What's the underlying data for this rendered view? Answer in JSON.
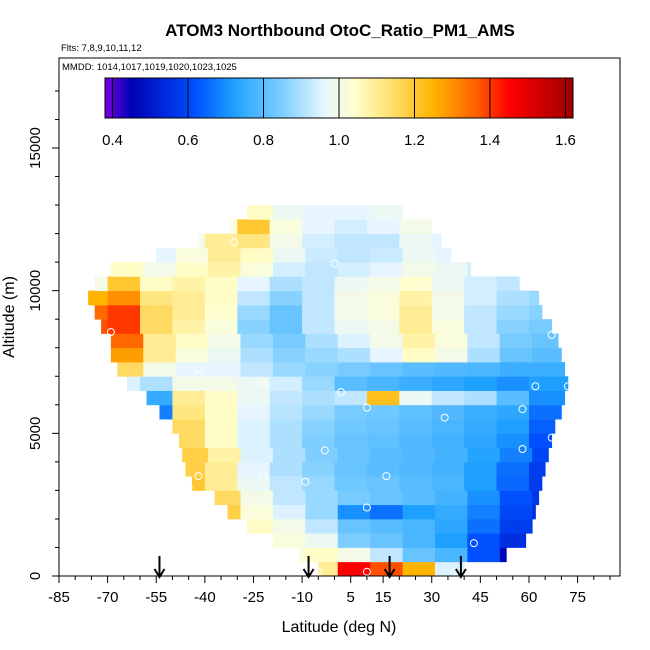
{
  "chart_data": {
    "type": "heatmap",
    "title": "ATOM3 Northbound OtoC_Ratio_PM1_AMS",
    "flights_note": "Flts: 7,8,9,10,11,12",
    "mmdd_note": "MMDD: 1014,1017,1019,1020,1023,1025",
    "xlabel": "Latitude (deg N)",
    "ylabel": "Altitude (m)",
    "xlim": [
      -85,
      85
    ],
    "ylim": [
      0,
      17500
    ],
    "x_ticks": [
      -85,
      -70,
      -55,
      -40,
      -25,
      -10,
      5,
      15,
      30,
      45,
      60,
      75
    ],
    "y_ticks": [
      0,
      5000,
      10000,
      15000
    ],
    "colorbar": {
      "range": [
        0.38,
        1.62
      ],
      "ticks": [
        0.4,
        0.6,
        0.8,
        1.0,
        1.2,
        1.4,
        1.6
      ],
      "tick_labels": [
        "0.4",
        "0.6",
        "0.8",
        "1.0",
        "1.2",
        "1.4",
        "1.6"
      ],
      "colors": [
        "#7a00e6",
        "#0000b4",
        "#0050ff",
        "#1ea0ff",
        "#7ecfff",
        "#e6f5ff",
        "#ffffd0",
        "#ffe680",
        "#ffb400",
        "#ff5a00",
        "#ff0000",
        "#a00000"
      ],
      "color_stops": [
        0.38,
        0.45,
        0.62,
        0.72,
        0.85,
        0.96,
        1.04,
        1.12,
        1.25,
        1.37,
        1.45,
        1.62
      ]
    },
    "grid": false,
    "arrows_at_latitude": [
      -54,
      -8,
      17,
      39
    ],
    "sample_points": [
      {
        "lat": -31,
        "alt": 11700
      },
      {
        "lat": -41,
        "alt": 11000
      },
      {
        "lat": 0,
        "alt": 10950
      },
      {
        "lat": -69,
        "alt": 8550
      },
      {
        "lat": 67,
        "alt": 8450
      },
      {
        "lat": -42,
        "alt": 7050
      },
      {
        "lat": -22,
        "alt": 6750
      },
      {
        "lat": 2,
        "alt": 6450
      },
      {
        "lat": 62,
        "alt": 6650
      },
      {
        "lat": 72,
        "alt": 6650
      },
      {
        "lat": 10,
        "alt": 5900
      },
      {
        "lat": 34,
        "alt": 5550
      },
      {
        "lat": 58,
        "alt": 5850
      },
      {
        "lat": 67,
        "alt": 4850
      },
      {
        "lat": -3,
        "alt": 4400
      },
      {
        "lat": 58,
        "alt": 4450
      },
      {
        "lat": -42,
        "alt": 3500
      },
      {
        "lat": -22,
        "alt": 3450
      },
      {
        "lat": -45,
        "alt": 3100
      },
      {
        "lat": -9,
        "alt": 3300
      },
      {
        "lat": 16,
        "alt": 3500
      },
      {
        "lat": 10,
        "alt": 2400
      },
      {
        "lat": 43,
        "alt": 1150
      },
      {
        "lat": 59,
        "alt": 650
      },
      {
        "lat": -5,
        "alt": 150
      },
      {
        "lat": 10,
        "alt": 150
      },
      {
        "lat": 37,
        "alt": 150
      },
      {
        "lat": 43,
        "alt": 150
      }
    ],
    "field": {
      "alt_rows": [
        0,
        500,
        1000,
        1500,
        2000,
        2500,
        3000,
        3500,
        4000,
        4500,
        5000,
        5500,
        6000,
        6500,
        7000,
        7500,
        8000,
        8500,
        9000,
        9500,
        10000,
        10500,
        11000,
        11500,
        12000,
        12500
      ],
      "lat_range_per_row": [
        [
          -5,
          40
        ],
        [
          -11,
          53
        ],
        [
          -19,
          59
        ],
        [
          -27,
          61
        ],
        [
          -33,
          62
        ],
        [
          -37,
          63
        ],
        [
          -44,
          64
        ],
        [
          -46,
          65
        ],
        [
          -47,
          66
        ],
        [
          -48,
          67
        ],
        [
          -50,
          68
        ],
        [
          -54,
          70
        ],
        [
          -58,
          71
        ],
        [
          -64,
          72
        ],
        [
          -67,
          71
        ],
        [
          -69,
          70
        ],
        [
          -69,
          69
        ],
        [
          -72,
          67
        ],
        [
          -74,
          64
        ],
        [
          -76,
          63
        ],
        [
          -74,
          57
        ],
        [
          -69,
          42
        ],
        [
          -55,
          36
        ],
        [
          -42,
          33
        ],
        [
          -32,
          30
        ],
        [
          -27,
          21
        ]
      ],
      "lat_cols": [
        -75,
        -65,
        -55,
        -45,
        -35,
        -25,
        -15,
        -5,
        5,
        15,
        25,
        35,
        45,
        55,
        65,
        75
      ],
      "values": [
        [
          1.0,
          1.0,
          1.0,
          1.0,
          1.0,
          1.0,
          1.0,
          1.1,
          1.45,
          1.38,
          1.25,
          0.95,
          0.7,
          0.62,
          0.6,
          0.6
        ],
        [
          1.0,
          1.0,
          1.0,
          1.0,
          1.0,
          1.0,
          1.02,
          1.05,
          1.0,
          0.92,
          0.82,
          0.78,
          0.62,
          0.46,
          0.45,
          0.45
        ],
        [
          1.0,
          1.0,
          1.0,
          1.0,
          1.0,
          1.0,
          1.02,
          0.98,
          0.85,
          0.82,
          0.78,
          0.72,
          0.62,
          0.55,
          0.55,
          0.55
        ],
        [
          1.0,
          1.0,
          1.0,
          1.25,
          1.2,
          1.05,
          1.0,
          0.92,
          0.82,
          0.8,
          0.78,
          0.74,
          0.66,
          0.58,
          0.55,
          0.55
        ],
        [
          1.0,
          1.0,
          1.0,
          1.25,
          1.18,
          1.02,
          0.95,
          0.88,
          0.7,
          0.66,
          0.72,
          0.75,
          0.68,
          0.6,
          0.55,
          0.55
        ],
        [
          1.0,
          1.0,
          1.0,
          1.2,
          1.15,
          1.0,
          0.92,
          0.88,
          0.84,
          0.82,
          0.8,
          0.77,
          0.7,
          0.62,
          0.57,
          0.57
        ],
        [
          1.0,
          1.0,
          0.78,
          1.2,
          1.1,
          0.98,
          0.92,
          0.88,
          0.83,
          0.82,
          0.8,
          0.78,
          0.72,
          0.65,
          0.58,
          0.58
        ],
        [
          1.0,
          1.0,
          0.75,
          1.18,
          1.1,
          0.96,
          0.9,
          0.86,
          0.82,
          0.8,
          0.79,
          0.77,
          0.72,
          0.66,
          0.58,
          0.58
        ],
        [
          1.0,
          1.0,
          0.72,
          1.18,
          1.08,
          0.95,
          0.9,
          0.85,
          0.82,
          0.8,
          0.79,
          0.77,
          0.73,
          0.68,
          0.6,
          0.6
        ],
        [
          1.0,
          0.8,
          0.72,
          1.15,
          1.05,
          0.95,
          0.9,
          0.85,
          0.82,
          0.81,
          0.79,
          0.77,
          0.74,
          0.7,
          0.62,
          0.62
        ],
        [
          0.85,
          0.8,
          0.7,
          1.15,
          1.05,
          0.95,
          0.9,
          0.86,
          0.83,
          0.82,
          0.8,
          0.78,
          0.75,
          0.72,
          0.64,
          0.64
        ],
        [
          0.85,
          0.8,
          0.68,
          1.12,
          1.05,
          0.96,
          0.91,
          0.88,
          0.84,
          0.83,
          0.81,
          0.79,
          0.76,
          0.74,
          0.66,
          0.66
        ],
        [
          0.9,
          0.85,
          0.75,
          1.1,
          1.05,
          0.98,
          0.92,
          0.9,
          0.92,
          1.22,
          0.98,
          0.92,
          0.9,
          0.8,
          0.7,
          0.7
        ],
        [
          1.0,
          0.95,
          0.9,
          1.0,
          1.0,
          0.98,
          0.94,
          0.88,
          0.8,
          0.78,
          0.76,
          0.74,
          0.72,
          0.7,
          0.72,
          0.72
        ],
        [
          1.1,
          1.15,
          1.0,
          0.96,
          0.96,
          0.92,
          0.88,
          0.86,
          0.84,
          0.82,
          0.8,
          0.79,
          0.78,
          0.76,
          0.76,
          0.76
        ],
        [
          1.25,
          1.28,
          1.1,
          1.02,
          0.98,
          0.9,
          0.86,
          0.88,
          0.9,
          0.96,
          1.05,
          1.0,
          0.9,
          0.82,
          0.8,
          0.8
        ],
        [
          1.32,
          1.35,
          1.1,
          1.05,
          1.0,
          0.88,
          0.84,
          0.9,
          0.95,
          1.0,
          1.08,
          1.02,
          0.92,
          0.84,
          0.82,
          0.82
        ],
        [
          1.38,
          1.4,
          1.15,
          1.08,
          1.02,
          0.86,
          0.82,
          0.92,
          0.98,
          1.0,
          1.1,
          1.02,
          0.92,
          0.86,
          0.84,
          0.84
        ],
        [
          1.35,
          1.4,
          1.15,
          1.1,
          1.04,
          0.88,
          0.82,
          0.92,
          1.0,
          1.02,
          1.1,
          1.0,
          0.92,
          0.88,
          0.86,
          0.86
        ],
        [
          1.25,
          1.3,
          1.12,
          1.1,
          1.05,
          0.92,
          0.86,
          0.92,
          1.0,
          1.02,
          1.08,
          1.0,
          0.94,
          0.9,
          0.88,
          0.88
        ],
        [
          1.0,
          1.2,
          1.05,
          1.08,
          1.05,
          0.96,
          0.9,
          0.92,
          0.98,
          1.0,
          1.04,
          0.98,
          0.94,
          0.92,
          0.9,
          0.9
        ],
        [
          0.95,
          1.05,
          1.0,
          1.05,
          1.08,
          1.02,
          0.94,
          0.92,
          0.94,
          0.96,
          1.0,
          0.98,
          0.94,
          0.92,
          0.9,
          0.9
        ],
        [
          0.95,
          0.98,
          0.96,
          1.02,
          1.1,
          1.05,
          0.98,
          0.93,
          0.92,
          0.93,
          0.98,
          0.96,
          0.94,
          0.92,
          0.9,
          0.9
        ],
        [
          0.95,
          0.95,
          0.95,
          1.0,
          1.1,
          1.12,
          1.0,
          0.94,
          0.92,
          0.92,
          0.98,
          0.96,
          0.94,
          0.92,
          0.9,
          0.9
        ],
        [
          0.95,
          0.95,
          0.95,
          0.98,
          1.02,
          1.2,
          1.02,
          0.96,
          0.94,
          0.96,
          1.0,
          0.98,
          0.95,
          0.92,
          0.9,
          0.9
        ],
        [
          0.95,
          0.95,
          0.95,
          0.98,
          1.0,
          1.05,
          0.98,
          0.96,
          0.96,
          0.98,
          1.0,
          0.98,
          0.96,
          0.94,
          0.92,
          0.92
        ]
      ]
    }
  }
}
